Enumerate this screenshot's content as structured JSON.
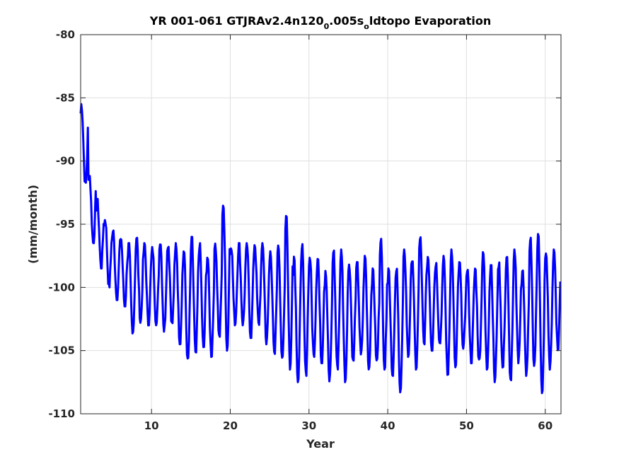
{
  "chart_data": {
    "type": "line",
    "title_parts": [
      "YR 001-061 GTJRAv2.4n120",
      "0",
      ".005s",
      "o",
      "ldtopo Evaporation"
    ],
    "xlabel": "Year",
    "ylabel": "(mm/month)",
    "xlim": [
      1,
      62
    ],
    "ylim": [
      -110,
      -80
    ],
    "xticks": [
      10,
      20,
      30,
      40,
      50,
      60
    ],
    "yticks": [
      -80,
      -85,
      -90,
      -95,
      -100,
      -105,
      -110
    ],
    "grid": true,
    "series": [
      {
        "color": "#0000ff",
        "samples_per_year": 12,
        "x_start": 1,
        "annual_peak": [
          -85.5,
          -91.0,
          -93.0,
          -94.5,
          -95.5,
          -96.0,
          -96.5,
          -96.0,
          -96.5,
          -96.8,
          -96.2,
          -96.5,
          -96.5,
          -97.0,
          -96.0,
          -96.5,
          -97.5,
          -96.5,
          -93.2,
          -96.5,
          -96.5,
          -96.5,
          -96.5,
          -96.5,
          -97.0,
          -96.5,
          -94.0,
          -97.5,
          -96.5,
          -97.5,
          -97.5,
          -98.5,
          -97.0,
          -97.0,
          -98.0,
          -98.0,
          -97.5,
          -98.5,
          -96.0,
          -98.5,
          -98.5,
          -97.0,
          -97.5,
          -96.0,
          -97.5,
          -98.0,
          -97.5,
          -97.0,
          -98.0,
          -98.5,
          -98.5,
          -97.0,
          -98.0,
          -98.0,
          -97.5,
          -97.0,
          -98.5,
          -96.0,
          -95.5,
          -97.0,
          -97.0
        ],
        "annual_trough": [
          -92.0,
          -96.5,
          -98.5,
          -100.0,
          -101.0,
          -101.5,
          -103.8,
          -102.8,
          -103.0,
          -103.0,
          -103.5,
          -103.0,
          -104.5,
          -106.0,
          -105.5,
          -105.0,
          -105.5,
          -104.0,
          -105.0,
          -103.0,
          -103.0,
          -104.0,
          -103.0,
          -104.5,
          -105.5,
          -106.0,
          -106.5,
          -107.5,
          -107.0,
          -105.5,
          -106.0,
          -107.5,
          -106.5,
          -107.5,
          -106.0,
          -105.5,
          -106.5,
          -106.0,
          -106.5,
          -107.0,
          -108.3,
          -105.5,
          -106.5,
          -104.5,
          -105.0,
          -104.5,
          -107.0,
          -106.5,
          -105.0,
          -106.0,
          -106.0,
          -106.5,
          -107.5,
          -106.5,
          -107.5,
          -106.0,
          -107.0,
          -106.5,
          -108.8,
          -106.5,
          -105.0
        ]
      }
    ]
  }
}
